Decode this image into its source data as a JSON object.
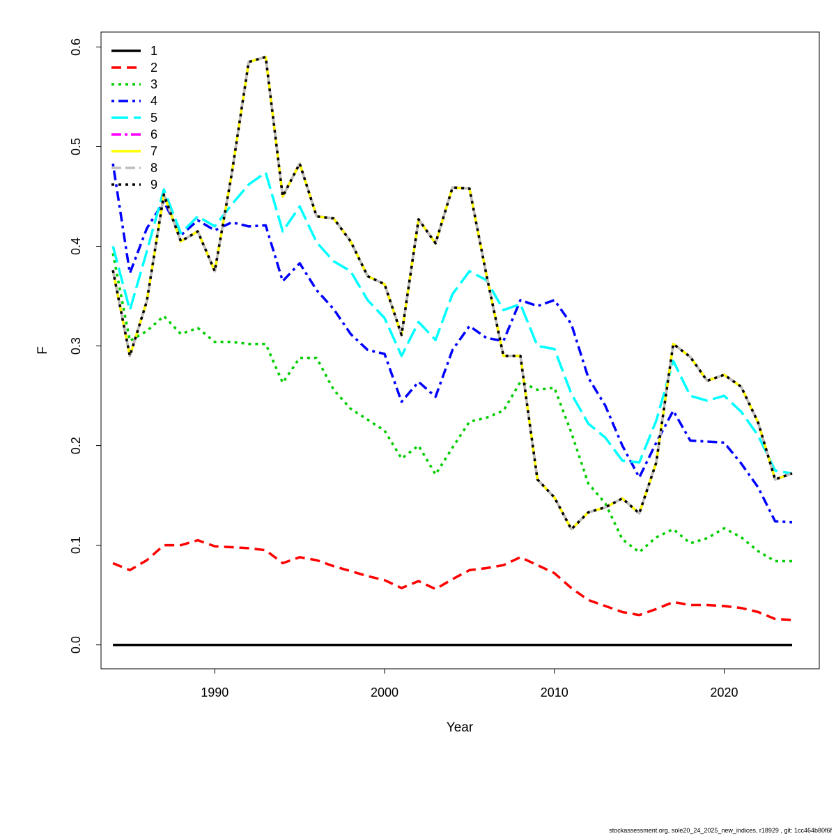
{
  "footer": "stockassessment.org, sole20_24_2025_new_indices, r18929 , git: 1cc464b80f6f",
  "chart_data": {
    "type": "line",
    "title": "",
    "xlabel": "Year",
    "ylabel": "F",
    "xlim": [
      1983.3,
      2025.6
    ],
    "ylim": [
      -0.024,
      0.615
    ],
    "x_ticks": [
      1990,
      2000,
      2010,
      2020
    ],
    "y_ticks": [
      0.0,
      0.1,
      0.2,
      0.3,
      0.4,
      0.5,
      0.6
    ],
    "y_tick_labels": [
      "0.0",
      "0.1",
      "0.2",
      "0.3",
      "0.4",
      "0.5",
      "0.6"
    ],
    "legend_position": "top-left",
    "grid": false,
    "x": [
      1984,
      1985,
      1986,
      1987,
      1988,
      1989,
      1990,
      1991,
      1992,
      1993,
      1994,
      1995,
      1996,
      1997,
      1998,
      1999,
      2000,
      2001,
      2002,
      2003,
      2004,
      2005,
      2006,
      2007,
      2008,
      2009,
      2010,
      2011,
      2012,
      2013,
      2014,
      2015,
      2016,
      2017,
      2018,
      2019,
      2020,
      2021,
      2022,
      2023,
      2024
    ],
    "series": [
      {
        "name": "1",
        "color": "#000000",
        "dash": "",
        "width": 3.5,
        "values": [
          0,
          0,
          0,
          0,
          0,
          0,
          0,
          0,
          0,
          0,
          0,
          0,
          0,
          0,
          0,
          0,
          0,
          0,
          0,
          0,
          0,
          0,
          0,
          0,
          0,
          0,
          0,
          0,
          0,
          0,
          0,
          0,
          0,
          0,
          0,
          0,
          0,
          0,
          0,
          0,
          0
        ]
      },
      {
        "name": "2",
        "color": "#ff0000",
        "dash": "14 8",
        "width": 3.5,
        "values": [
          0.082,
          0.075,
          0.085,
          0.1,
          0.1,
          0.105,
          0.099,
          0.098,
          0.097,
          0.095,
          0.082,
          0.088,
          0.085,
          0.079,
          0.074,
          0.069,
          0.065,
          0.057,
          0.064,
          0.056,
          0.066,
          0.075,
          0.077,
          0.08,
          0.088,
          0.08,
          0.072,
          0.057,
          0.045,
          0.039,
          0.033,
          0.03,
          0.036,
          0.043,
          0.04,
          0.04,
          0.039,
          0.037,
          0.033,
          0.026,
          0.025
        ]
      },
      {
        "name": "3",
        "color": "#00cd00",
        "dash": "4 6",
        "width": 3.5,
        "values": [
          0.393,
          0.305,
          0.315,
          0.33,
          0.312,
          0.318,
          0.304,
          0.304,
          0.302,
          0.302,
          0.263,
          0.288,
          0.288,
          0.256,
          0.237,
          0.226,
          0.215,
          0.187,
          0.2,
          0.171,
          0.198,
          0.224,
          0.228,
          0.235,
          0.264,
          0.256,
          0.258,
          0.213,
          0.162,
          0.142,
          0.106,
          0.093,
          0.108,
          0.116,
          0.102,
          0.107,
          0.117,
          0.108,
          0.094,
          0.084,
          0.084
        ]
      },
      {
        "name": "4",
        "color": "#0000ff",
        "dash": "4 6 14 6",
        "width": 3.5,
        "values": [
          0.483,
          0.373,
          0.418,
          0.445,
          0.411,
          0.426,
          0.416,
          0.424,
          0.42,
          0.421,
          0.365,
          0.383,
          0.356,
          0.337,
          0.312,
          0.296,
          0.292,
          0.244,
          0.264,
          0.249,
          0.296,
          0.32,
          0.308,
          0.305,
          0.346,
          0.34,
          0.346,
          0.322,
          0.268,
          0.24,
          0.2,
          0.168,
          0.203,
          0.235,
          0.205,
          0.204,
          0.203,
          0.182,
          0.158,
          0.124,
          0.123
        ]
      },
      {
        "name": "5",
        "color": "#00ffff",
        "dash": "24 8",
        "width": 3.5,
        "values": [
          0.4,
          0.336,
          0.395,
          0.457,
          0.413,
          0.43,
          0.42,
          0.442,
          0.462,
          0.474,
          0.415,
          0.44,
          0.404,
          0.385,
          0.375,
          0.346,
          0.328,
          0.29,
          0.324,
          0.306,
          0.352,
          0.375,
          0.366,
          0.336,
          0.342,
          0.3,
          0.297,
          0.252,
          0.222,
          0.208,
          0.185,
          0.183,
          0.225,
          0.285,
          0.25,
          0.245,
          0.25,
          0.234,
          0.21,
          0.175,
          0.172
        ]
      },
      {
        "name": "6",
        "color": "#ff00ff",
        "dash": "14 5 4 5",
        "width": 3.5,
        "values": [
          0.376,
          0.29,
          0.345,
          0.452,
          0.405,
          0.415,
          0.375,
          0.473,
          0.585,
          0.59,
          0.45,
          0.483,
          0.43,
          0.428,
          0.405,
          0.37,
          0.362,
          0.311,
          0.427,
          0.403,
          0.459,
          0.458,
          0.371,
          0.29,
          0.29,
          0.166,
          0.148,
          0.116,
          0.133,
          0.138,
          0.147,
          0.132,
          0.183,
          0.302,
          0.289,
          0.265,
          0.271,
          0.259,
          0.223,
          0.166,
          0.172
        ]
      },
      {
        "name": "7",
        "color": "#ffff00",
        "dash": "",
        "width": 3.5,
        "values": [
          0.376,
          0.29,
          0.345,
          0.452,
          0.405,
          0.415,
          0.375,
          0.473,
          0.585,
          0.59,
          0.45,
          0.483,
          0.43,
          0.428,
          0.405,
          0.37,
          0.362,
          0.311,
          0.427,
          0.403,
          0.459,
          0.458,
          0.371,
          0.29,
          0.29,
          0.166,
          0.148,
          0.116,
          0.133,
          0.138,
          0.147,
          0.132,
          0.183,
          0.302,
          0.289,
          0.265,
          0.271,
          0.259,
          0.223,
          0.166,
          0.172
        ]
      },
      {
        "name": "8",
        "color": "#bebebe",
        "dash": "14 6",
        "width": 3.5,
        "values": [
          0.376,
          0.29,
          0.345,
          0.452,
          0.405,
          0.415,
          0.375,
          0.473,
          0.585,
          0.59,
          0.45,
          0.483,
          0.43,
          0.428,
          0.405,
          0.37,
          0.362,
          0.311,
          0.427,
          0.403,
          0.459,
          0.458,
          0.371,
          0.29,
          0.29,
          0.166,
          0.148,
          0.116,
          0.133,
          0.138,
          0.147,
          0.132,
          0.183,
          0.302,
          0.289,
          0.265,
          0.271,
          0.259,
          0.223,
          0.166,
          0.172
        ]
      },
      {
        "name": "9",
        "color": "#000000",
        "dash": "4 6",
        "width": 3.5,
        "values": [
          0.376,
          0.29,
          0.345,
          0.452,
          0.405,
          0.415,
          0.375,
          0.473,
          0.585,
          0.59,
          0.45,
          0.483,
          0.43,
          0.428,
          0.405,
          0.37,
          0.362,
          0.311,
          0.427,
          0.403,
          0.459,
          0.458,
          0.371,
          0.29,
          0.29,
          0.166,
          0.148,
          0.116,
          0.133,
          0.138,
          0.147,
          0.132,
          0.183,
          0.302,
          0.289,
          0.265,
          0.271,
          0.259,
          0.223,
          0.166,
          0.172
        ]
      }
    ]
  }
}
